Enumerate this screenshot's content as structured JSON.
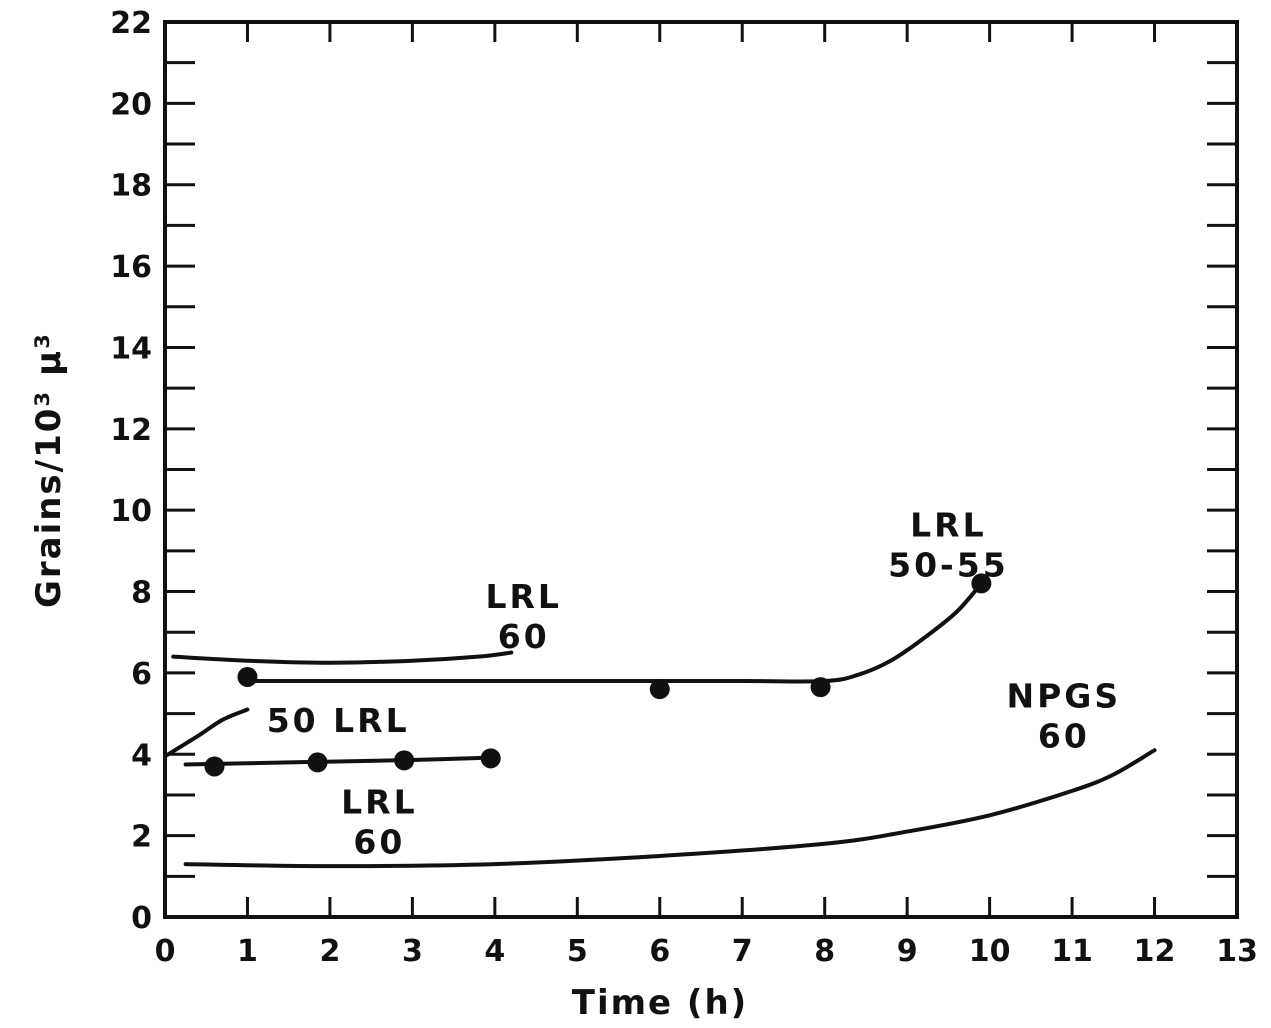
{
  "chart_data": {
    "type": "line",
    "title": "",
    "xlabel": "Time   (h)",
    "ylabel": "Grains/10³ μ³",
    "xlim": [
      0,
      13
    ],
    "ylim": [
      0,
      22
    ],
    "x_ticks": [
      0,
      1,
      2,
      3,
      4,
      5,
      6,
      7,
      8,
      9,
      10,
      11,
      12,
      13
    ],
    "y_ticks": [
      0,
      2,
      4,
      6,
      8,
      10,
      12,
      14,
      16,
      18,
      20,
      22
    ],
    "x_tick_labels": [
      "0",
      "1",
      "2",
      "3",
      "4",
      "5",
      "6",
      "7",
      "8",
      "9",
      "10",
      "11",
      "12",
      "13"
    ],
    "y_tick_labels": [
      "0",
      "2",
      "4",
      "6",
      "8",
      "10",
      "12",
      "14",
      "16",
      "18",
      "20",
      "22"
    ],
    "grid": false,
    "series": [
      {
        "name": "LRL 60",
        "points": [
          {
            "x": 0.6,
            "y": 3.7
          },
          {
            "x": 1.85,
            "y": 3.8
          },
          {
            "x": 2.9,
            "y": 3.85
          },
          {
            "x": 3.95,
            "y": 3.9
          }
        ],
        "curve": [
          [
            0.25,
            3.75
          ],
          [
            1.0,
            3.78
          ],
          [
            2.0,
            3.82
          ],
          [
            3.0,
            3.86
          ],
          [
            4.0,
            3.92
          ]
        ]
      },
      {
        "name": "LRL 50-55",
        "points": [
          {
            "x": 1.0,
            "y": 5.9
          },
          {
            "x": 6.0,
            "y": 5.6
          },
          {
            "x": 7.95,
            "y": 5.65
          },
          {
            "x": 9.9,
            "y": 8.2
          }
        ],
        "curve": [
          [
            1.0,
            5.8
          ],
          [
            3.0,
            5.8
          ],
          [
            5.0,
            5.8
          ],
          [
            7.0,
            5.8
          ],
          [
            8.0,
            5.8
          ],
          [
            8.4,
            5.95
          ],
          [
            8.8,
            6.3
          ],
          [
            9.2,
            6.85
          ],
          [
            9.6,
            7.5
          ],
          [
            9.9,
            8.2
          ]
        ]
      },
      {
        "name": "LRL 60",
        "points": [],
        "curve": [
          [
            0.1,
            6.4
          ],
          [
            1.0,
            6.3
          ],
          [
            2.0,
            6.25
          ],
          [
            3.0,
            6.3
          ],
          [
            3.8,
            6.4
          ],
          [
            4.2,
            6.5
          ]
        ]
      },
      {
        "name": "50 LRL",
        "points": [],
        "curve": [
          [
            0.0,
            3.95
          ],
          [
            0.4,
            4.45
          ],
          [
            0.7,
            4.85
          ],
          [
            1.0,
            5.1
          ]
        ]
      },
      {
        "name": "NPGS 60",
        "points": [],
        "curve": [
          [
            0.25,
            1.3
          ],
          [
            2.0,
            1.25
          ],
          [
            4.0,
            1.3
          ],
          [
            6.0,
            1.5
          ],
          [
            8.0,
            1.8
          ],
          [
            9.0,
            2.1
          ],
          [
            10.0,
            2.5
          ],
          [
            11.0,
            3.1
          ],
          [
            11.5,
            3.5
          ],
          [
            12.0,
            4.1
          ]
        ]
      }
    ],
    "annotations": [
      {
        "lines": [
          "LRL",
          "60"
        ],
        "x": 4.35,
        "y": 7.6
      },
      {
        "lines": [
          "LRL",
          "50-55"
        ],
        "x": 9.5,
        "y": 9.35
      },
      {
        "lines": [
          "50 LRL"
        ],
        "x": 2.1,
        "y": 4.55
      },
      {
        "lines": [
          "LRL",
          "60"
        ],
        "x": 2.6,
        "y": 2.55
      },
      {
        "lines": [
          "NPGS",
          "60"
        ],
        "x": 10.9,
        "y": 5.15
      }
    ]
  }
}
